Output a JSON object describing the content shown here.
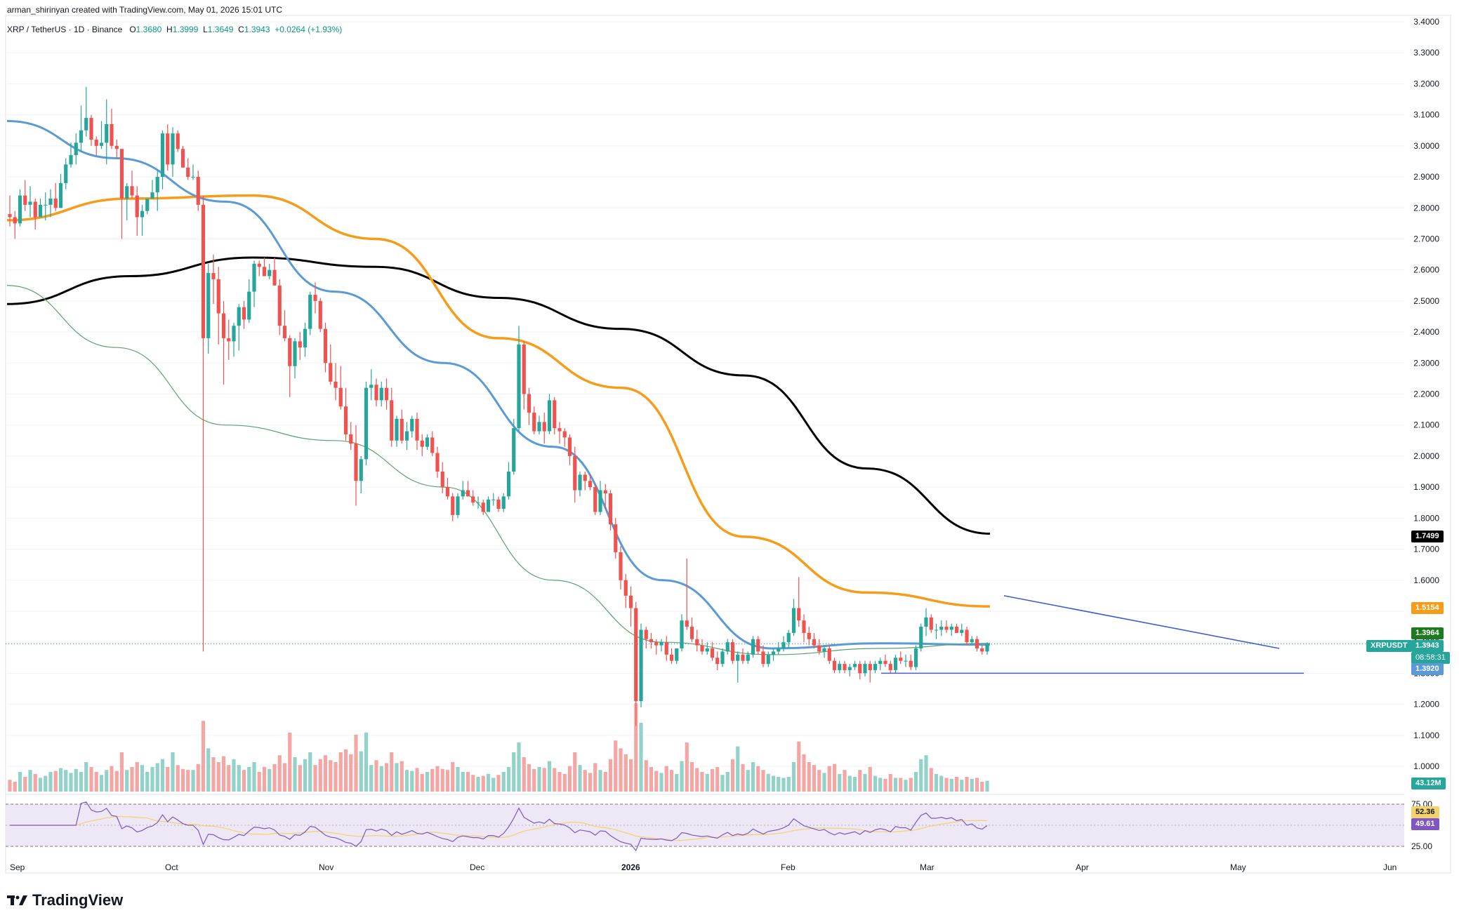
{
  "header": {
    "credit": "arman_shirinyan created with TradingView.com, May 01, 2026 15:01 UTC",
    "symbol": "XRP / TetherUS · 1D · Binance",
    "open_label": "O",
    "open": "1.3680",
    "high_label": "H",
    "high": "1.3999",
    "low_label": "L",
    "low": "1.3649",
    "close_label": "C",
    "close": "1.3943",
    "change": "+0.0264 (+1.93%)"
  },
  "colors": {
    "up": "#26a69a",
    "down": "#ef5350",
    "vol_up": "#93d2c8",
    "vol_down": "#f4a6a4",
    "sma_black": "#000000",
    "sma_orange": "#f59d1b",
    "sma_blue": "#5b9bd5",
    "sma_green": "#5aa36a",
    "trendline": "#3e5fd4",
    "rsi": "#7e57c2",
    "rsi_ma": "#f3d36b",
    "rsi_band": "#ede7f6"
  },
  "price_axis": [
    "3.4000",
    "3.3000",
    "3.2000",
    "3.1000",
    "3.0000",
    "2.9000",
    "2.8000",
    "2.7000",
    "2.6000",
    "2.5000",
    "2.4000",
    "2.3000",
    "2.2000",
    "2.1000",
    "2.0000",
    "1.9000",
    "1.8000",
    "1.7000",
    "1.6000",
    "1.5000",
    "1.4000",
    "1.3000",
    "1.2000",
    "1.1000",
    "1.0000"
  ],
  "rsi_axis": [
    "75.00",
    "25.00"
  ],
  "time_axis": [
    {
      "label": "Sep",
      "bold": false
    },
    {
      "label": "Oct",
      "bold": false
    },
    {
      "label": "Nov",
      "bold": false
    },
    {
      "label": "Dec",
      "bold": false
    },
    {
      "label": "2026",
      "bold": true
    },
    {
      "label": "Feb",
      "bold": false
    },
    {
      "label": "Mar",
      "bold": false
    },
    {
      "label": "Apr",
      "bold": false
    },
    {
      "label": "May",
      "bold": false
    },
    {
      "label": "Jun",
      "bold": false
    }
  ],
  "price_tags": {
    "sma200": "1.7499",
    "sma100": "1.5154",
    "sma20": "1.3964",
    "symbol": "XRPUSDT",
    "last": "1.3943",
    "countdown": "08:58:31",
    "sma50": "1.3920",
    "volume": "43.12M",
    "rsi_ma": "52.36",
    "rsi": "49.61"
  },
  "logo_text": "TradingView",
  "chart_data": {
    "type": "candlestick",
    "ylim": [
      0.9,
      3.42
    ],
    "candles_ohlc": [
      [
        2.78,
        2.84,
        2.74,
        2.77
      ],
      [
        2.77,
        2.79,
        2.7,
        2.75
      ],
      [
        2.75,
        2.86,
        2.74,
        2.84
      ],
      [
        2.84,
        2.89,
        2.79,
        2.81
      ],
      [
        2.81,
        2.87,
        2.77,
        2.82
      ],
      [
        2.82,
        2.83,
        2.73,
        2.77
      ],
      [
        2.77,
        2.83,
        2.77,
        2.81
      ],
      [
        2.81,
        2.85,
        2.76,
        2.81
      ],
      [
        2.81,
        2.86,
        2.77,
        2.83
      ],
      [
        2.83,
        2.88,
        2.79,
        2.8
      ],
      [
        2.8,
        2.91,
        2.8,
        2.88
      ],
      [
        2.88,
        2.96,
        2.86,
        2.94
      ],
      [
        2.94,
        3.01,
        2.93,
        2.97
      ],
      [
        2.97,
        3.04,
        2.94,
        3.01
      ],
      [
        3.01,
        3.13,
        2.98,
        3.05
      ],
      [
        3.05,
        3.19,
        3.03,
        3.09
      ],
      [
        3.09,
        3.1,
        3.0,
        3.02
      ],
      [
        3.02,
        3.03,
        2.97,
        3.0
      ],
      [
        3.0,
        3.08,
        2.99,
        3.01
      ],
      [
        3.01,
        3.15,
        2.94,
        3.07
      ],
      [
        3.07,
        3.12,
        2.99,
        3.0
      ],
      [
        3.0,
        3.02,
        2.96,
        2.99
      ],
      [
        2.99,
        2.99,
        2.7,
        2.83
      ],
      [
        2.83,
        2.88,
        2.76,
        2.87
      ],
      [
        2.87,
        2.92,
        2.83,
        2.84
      ],
      [
        2.84,
        2.87,
        2.71,
        2.77
      ],
      [
        2.77,
        2.81,
        2.71,
        2.79
      ],
      [
        2.79,
        2.83,
        2.78,
        2.83
      ],
      [
        2.83,
        2.89,
        2.83,
        2.85
      ],
      [
        2.85,
        2.92,
        2.79,
        2.9
      ],
      [
        2.9,
        3.05,
        2.86,
        3.04
      ],
      [
        3.04,
        3.07,
        2.92,
        2.94
      ],
      [
        2.94,
        3.06,
        2.9,
        3.04
      ],
      [
        3.04,
        3.05,
        2.98,
        2.99
      ],
      [
        2.99,
        3.0,
        2.93,
        2.93
      ],
      [
        2.93,
        2.96,
        2.89,
        2.9
      ],
      [
        2.9,
        2.94,
        2.89,
        2.9
      ],
      [
        2.9,
        2.92,
        2.79,
        2.81
      ],
      [
        2.81,
        2.84,
        1.37,
        2.38
      ],
      [
        2.38,
        2.62,
        2.33,
        2.59
      ],
      [
        2.59,
        2.65,
        2.49,
        2.57
      ],
      [
        2.57,
        2.61,
        2.36,
        2.46
      ],
      [
        2.46,
        2.5,
        2.23,
        2.38
      ],
      [
        2.38,
        2.44,
        2.31,
        2.37
      ],
      [
        2.37,
        2.43,
        2.32,
        2.42
      ],
      [
        2.42,
        2.49,
        2.34,
        2.48
      ],
      [
        2.48,
        2.5,
        2.41,
        2.44
      ],
      [
        2.44,
        2.57,
        2.43,
        2.53
      ],
      [
        2.53,
        2.63,
        2.48,
        2.62
      ],
      [
        2.62,
        2.63,
        2.58,
        2.61
      ],
      [
        2.61,
        2.64,
        2.58,
        2.58
      ],
      [
        2.58,
        2.62,
        2.57,
        2.6
      ],
      [
        2.6,
        2.64,
        2.55,
        2.55
      ],
      [
        2.55,
        2.57,
        2.39,
        2.42
      ],
      [
        2.42,
        2.47,
        2.37,
        2.38
      ],
      [
        2.38,
        2.39,
        2.19,
        2.29
      ],
      [
        2.29,
        2.38,
        2.25,
        2.37
      ],
      [
        2.37,
        2.4,
        2.31,
        2.35
      ],
      [
        2.35,
        2.43,
        2.32,
        2.41
      ],
      [
        2.41,
        2.53,
        2.39,
        2.52
      ],
      [
        2.52,
        2.56,
        2.46,
        2.5
      ],
      [
        2.5,
        2.51,
        2.4,
        2.41
      ],
      [
        2.41,
        2.43,
        2.27,
        2.3
      ],
      [
        2.3,
        2.36,
        2.23,
        2.24
      ],
      [
        2.24,
        2.3,
        2.18,
        2.22
      ],
      [
        2.22,
        2.29,
        2.15,
        2.16
      ],
      [
        2.16,
        2.22,
        2.05,
        2.07
      ],
      [
        2.07,
        2.11,
        2.02,
        2.04
      ],
      [
        2.04,
        2.1,
        1.84,
        1.92
      ],
      [
        1.92,
        2.0,
        1.88,
        1.99
      ],
      [
        1.99,
        2.24,
        1.97,
        2.22
      ],
      [
        2.22,
        2.28,
        2.18,
        2.23
      ],
      [
        2.23,
        2.25,
        2.16,
        2.18
      ],
      [
        2.18,
        2.24,
        2.16,
        2.22
      ],
      [
        2.22,
        2.25,
        2.15,
        2.18
      ],
      [
        2.18,
        2.22,
        2.03,
        2.05
      ],
      [
        2.05,
        2.13,
        2.03,
        2.12
      ],
      [
        2.12,
        2.15,
        2.04,
        2.05
      ],
      [
        2.05,
        2.11,
        2.02,
        2.08
      ],
      [
        2.08,
        2.13,
        2.06,
        2.12
      ],
      [
        2.12,
        2.14,
        2.02,
        2.05
      ],
      [
        2.05,
        2.07,
        2.0,
        2.03
      ],
      [
        2.03,
        2.07,
        2.02,
        2.06
      ],
      [
        2.06,
        2.08,
        2.0,
        2.01
      ],
      [
        2.01,
        2.03,
        1.93,
        1.95
      ],
      [
        1.95,
        1.98,
        1.88,
        1.9
      ],
      [
        1.9,
        1.93,
        1.86,
        1.87
      ],
      [
        1.87,
        1.88,
        1.79,
        1.81
      ],
      [
        1.81,
        1.88,
        1.8,
        1.87
      ],
      [
        1.87,
        1.92,
        1.86,
        1.89
      ],
      [
        1.89,
        1.92,
        1.87,
        1.87
      ],
      [
        1.87,
        1.89,
        1.84,
        1.85
      ],
      [
        1.85,
        1.87,
        1.83,
        1.85
      ],
      [
        1.85,
        1.86,
        1.81,
        1.82
      ],
      [
        1.82,
        1.87,
        1.82,
        1.86
      ],
      [
        1.86,
        1.88,
        1.84,
        1.86
      ],
      [
        1.86,
        1.87,
        1.82,
        1.83
      ],
      [
        1.83,
        1.88,
        1.82,
        1.87
      ],
      [
        1.87,
        1.98,
        1.86,
        1.95
      ],
      [
        1.95,
        2.12,
        1.94,
        2.09
      ],
      [
        2.09,
        2.42,
        2.08,
        2.36
      ],
      [
        2.36,
        2.37,
        2.15,
        2.2
      ],
      [
        2.2,
        2.22,
        2.1,
        2.14
      ],
      [
        2.14,
        2.16,
        2.07,
        2.08
      ],
      [
        2.08,
        2.13,
        2.07,
        2.11
      ],
      [
        2.11,
        2.14,
        2.04,
        2.08
      ],
      [
        2.08,
        2.2,
        2.07,
        2.18
      ],
      [
        2.18,
        2.19,
        2.07,
        2.09
      ],
      [
        2.09,
        2.11,
        2.04,
        2.08
      ],
      [
        2.08,
        2.09,
        2.03,
        2.06
      ],
      [
        2.06,
        2.07,
        1.97,
        2.0
      ],
      [
        2.0,
        2.03,
        1.85,
        1.89
      ],
      [
        1.89,
        1.95,
        1.87,
        1.94
      ],
      [
        1.94,
        1.95,
        1.89,
        1.92
      ],
      [
        1.92,
        1.94,
        1.89,
        1.9
      ],
      [
        1.9,
        1.91,
        1.81,
        1.82
      ],
      [
        1.82,
        1.92,
        1.81,
        1.89
      ],
      [
        1.89,
        1.91,
        1.83,
        1.88
      ],
      [
        1.88,
        1.89,
        1.76,
        1.78
      ],
      [
        1.78,
        1.8,
        1.67,
        1.69
      ],
      [
        1.69,
        1.71,
        1.57,
        1.6
      ],
      [
        1.6,
        1.62,
        1.51,
        1.55
      ],
      [
        1.55,
        1.58,
        1.45,
        1.51
      ],
      [
        1.51,
        1.53,
        1.13,
        1.21
      ],
      [
        1.21,
        1.46,
        1.19,
        1.44
      ],
      [
        1.44,
        1.45,
        1.38,
        1.41
      ],
      [
        1.41,
        1.43,
        1.38,
        1.4
      ],
      [
        1.4,
        1.41,
        1.36,
        1.39
      ],
      [
        1.39,
        1.41,
        1.37,
        1.4
      ],
      [
        1.4,
        1.42,
        1.34,
        1.36
      ],
      [
        1.36,
        1.38,
        1.33,
        1.34
      ],
      [
        1.34,
        1.38,
        1.33,
        1.38
      ],
      [
        1.38,
        1.49,
        1.37,
        1.47
      ],
      [
        1.47,
        1.67,
        1.44,
        1.45
      ],
      [
        1.45,
        1.48,
        1.4,
        1.41
      ],
      [
        1.41,
        1.44,
        1.37,
        1.39
      ],
      [
        1.39,
        1.41,
        1.36,
        1.37
      ],
      [
        1.37,
        1.4,
        1.36,
        1.38
      ],
      [
        1.38,
        1.4,
        1.34,
        1.35
      ],
      [
        1.35,
        1.37,
        1.31,
        1.33
      ],
      [
        1.33,
        1.38,
        1.32,
        1.37
      ],
      [
        1.37,
        1.41,
        1.36,
        1.4
      ],
      [
        1.4,
        1.41,
        1.33,
        1.34
      ],
      [
        1.34,
        1.37,
        1.27,
        1.36
      ],
      [
        1.36,
        1.38,
        1.33,
        1.34
      ],
      [
        1.34,
        1.37,
        1.33,
        1.36
      ],
      [
        1.36,
        1.42,
        1.35,
        1.41
      ],
      [
        1.41,
        1.42,
        1.36,
        1.37
      ],
      [
        1.37,
        1.39,
        1.32,
        1.33
      ],
      [
        1.33,
        1.37,
        1.32,
        1.36
      ],
      [
        1.36,
        1.38,
        1.34,
        1.37
      ],
      [
        1.37,
        1.4,
        1.36,
        1.38
      ],
      [
        1.38,
        1.42,
        1.37,
        1.4
      ],
      [
        1.4,
        1.44,
        1.38,
        1.43
      ],
      [
        1.43,
        1.54,
        1.42,
        1.51
      ],
      [
        1.51,
        1.61,
        1.45,
        1.47
      ],
      [
        1.47,
        1.49,
        1.4,
        1.43
      ],
      [
        1.43,
        1.45,
        1.39,
        1.41
      ],
      [
        1.41,
        1.43,
        1.38,
        1.39
      ],
      [
        1.39,
        1.41,
        1.36,
        1.37
      ],
      [
        1.37,
        1.39,
        1.35,
        1.38
      ],
      [
        1.38,
        1.39,
        1.33,
        1.34
      ],
      [
        1.34,
        1.35,
        1.3,
        1.31
      ],
      [
        1.31,
        1.34,
        1.3,
        1.33
      ],
      [
        1.33,
        1.34,
        1.3,
        1.31
      ],
      [
        1.31,
        1.33,
        1.29,
        1.32
      ],
      [
        1.32,
        1.34,
        1.31,
        1.33
      ],
      [
        1.33,
        1.34,
        1.28,
        1.3
      ],
      [
        1.3,
        1.34,
        1.29,
        1.33
      ],
      [
        1.33,
        1.34,
        1.27,
        1.31
      ],
      [
        1.31,
        1.34,
        1.3,
        1.33
      ],
      [
        1.33,
        1.35,
        1.31,
        1.34
      ],
      [
        1.34,
        1.36,
        1.32,
        1.33
      ],
      [
        1.33,
        1.34,
        1.3,
        1.31
      ],
      [
        1.31,
        1.36,
        1.3,
        1.35
      ],
      [
        1.35,
        1.37,
        1.33,
        1.34
      ],
      [
        1.34,
        1.36,
        1.32,
        1.34
      ],
      [
        1.34,
        1.36,
        1.31,
        1.32
      ],
      [
        1.32,
        1.39,
        1.31,
        1.38
      ],
      [
        1.38,
        1.46,
        1.37,
        1.45
      ],
      [
        1.45,
        1.51,
        1.42,
        1.48
      ],
      [
        1.48,
        1.49,
        1.43,
        1.44
      ],
      [
        1.44,
        1.46,
        1.41,
        1.44
      ],
      [
        1.44,
        1.47,
        1.42,
        1.45
      ],
      [
        1.45,
        1.47,
        1.43,
        1.44
      ],
      [
        1.44,
        1.46,
        1.42,
        1.45
      ],
      [
        1.45,
        1.46,
        1.43,
        1.43
      ],
      [
        1.43,
        1.46,
        1.42,
        1.44
      ],
      [
        1.44,
        1.45,
        1.39,
        1.4
      ],
      [
        1.4,
        1.42,
        1.39,
        1.41
      ],
      [
        1.41,
        1.42,
        1.37,
        1.38
      ],
      [
        1.38,
        1.39,
        1.36,
        1.37
      ],
      [
        1.37,
        1.4,
        1.36,
        1.3943
      ]
    ],
    "volume_relative": [
      0.12,
      0.1,
      0.2,
      0.15,
      0.22,
      0.18,
      0.14,
      0.16,
      0.2,
      0.21,
      0.24,
      0.22,
      0.19,
      0.23,
      0.2,
      0.3,
      0.25,
      0.2,
      0.17,
      0.22,
      0.26,
      0.21,
      0.4,
      0.22,
      0.25,
      0.3,
      0.27,
      0.2,
      0.25,
      0.29,
      0.33,
      0.25,
      0.4,
      0.27,
      0.23,
      0.22,
      0.22,
      0.28,
      0.72,
      0.44,
      0.35,
      0.3,
      0.36,
      0.27,
      0.33,
      0.27,
      0.22,
      0.25,
      0.3,
      0.2,
      0.25,
      0.23,
      0.28,
      0.37,
      0.29,
      0.6,
      0.35,
      0.27,
      0.33,
      0.4,
      0.27,
      0.33,
      0.37,
      0.32,
      0.3,
      0.4,
      0.43,
      0.38,
      0.58,
      0.41,
      0.6,
      0.27,
      0.32,
      0.26,
      0.29,
      0.4,
      0.29,
      0.31,
      0.22,
      0.21,
      0.24,
      0.18,
      0.2,
      0.23,
      0.26,
      0.23,
      0.22,
      0.3,
      0.25,
      0.2,
      0.2,
      0.17,
      0.15,
      0.16,
      0.18,
      0.14,
      0.17,
      0.2,
      0.25,
      0.4,
      0.5,
      0.35,
      0.28,
      0.23,
      0.25,
      0.24,
      0.31,
      0.24,
      0.2,
      0.18,
      0.26,
      0.4,
      0.27,
      0.22,
      0.19,
      0.29,
      0.22,
      0.2,
      0.33,
      0.52,
      0.44,
      0.38,
      0.33,
      0.9,
      0.7,
      0.32,
      0.25,
      0.21,
      0.19,
      0.26,
      0.22,
      0.18,
      0.31,
      0.5,
      0.3,
      0.24,
      0.2,
      0.18,
      0.23,
      0.25,
      0.17,
      0.2,
      0.33,
      0.46,
      0.28,
      0.22,
      0.3,
      0.26,
      0.22,
      0.18,
      0.16,
      0.15,
      0.14,
      0.15,
      0.3,
      0.51,
      0.38,
      0.3,
      0.27,
      0.22,
      0.19,
      0.26,
      0.28,
      0.18,
      0.22,
      0.16,
      0.15,
      0.22,
      0.18,
      0.25,
      0.16,
      0.14,
      0.13,
      0.18,
      0.14,
      0.14,
      0.12,
      0.14,
      0.2,
      0.33,
      0.37,
      0.24,
      0.18,
      0.16,
      0.14,
      0.13,
      0.15,
      0.12,
      0.15,
      0.13,
      0.14,
      0.1,
      0.11
    ],
    "sma_20": [
      2.55,
      2.35,
      2.1,
      2.05,
      1.9,
      1.6,
      1.4,
      1.36,
      1.38,
      1.3964
    ],
    "sma_50": [
      3.08,
      2.96,
      2.82,
      2.53,
      2.3,
      2.03,
      1.6,
      1.38,
      1.3964,
      1.392
    ],
    "sma_100": [
      2.76,
      2.83,
      2.84,
      2.7,
      2.38,
      2.22,
      1.74,
      1.56,
      1.5154
    ],
    "sma_200": [
      2.49,
      2.58,
      2.64,
      2.61,
      2.51,
      2.41,
      2.26,
      1.96,
      1.7499
    ],
    "sma_sample_dates": {
      "sma_20": [
        "Sep",
        "Oct",
        "Oct",
        "Nov",
        "Dec",
        "Feb",
        "Feb",
        "Mar",
        "Apr",
        "May"
      ],
      "sma_50": [
        "Sep",
        "Oct",
        "Oct",
        "Nov",
        "Dec",
        "Jan",
        "Feb",
        "Mar",
        "Apr",
        "May"
      ],
      "sma_100": [
        "Sep",
        "Oct",
        "Oct",
        "Nov",
        "Dec",
        "Jan",
        "Feb",
        "Mar",
        "May"
      ],
      "sma_200": [
        "Sep",
        "Oct",
        "Oct",
        "Nov",
        "Dec",
        "Jan",
        "Feb",
        "Mar",
        "May"
      ]
    },
    "resistance_line": [
      1.55,
      1.38
    ],
    "support_line": [
      1.3,
      1.3
    ],
    "rsi_range": [
      20,
      80
    ]
  }
}
